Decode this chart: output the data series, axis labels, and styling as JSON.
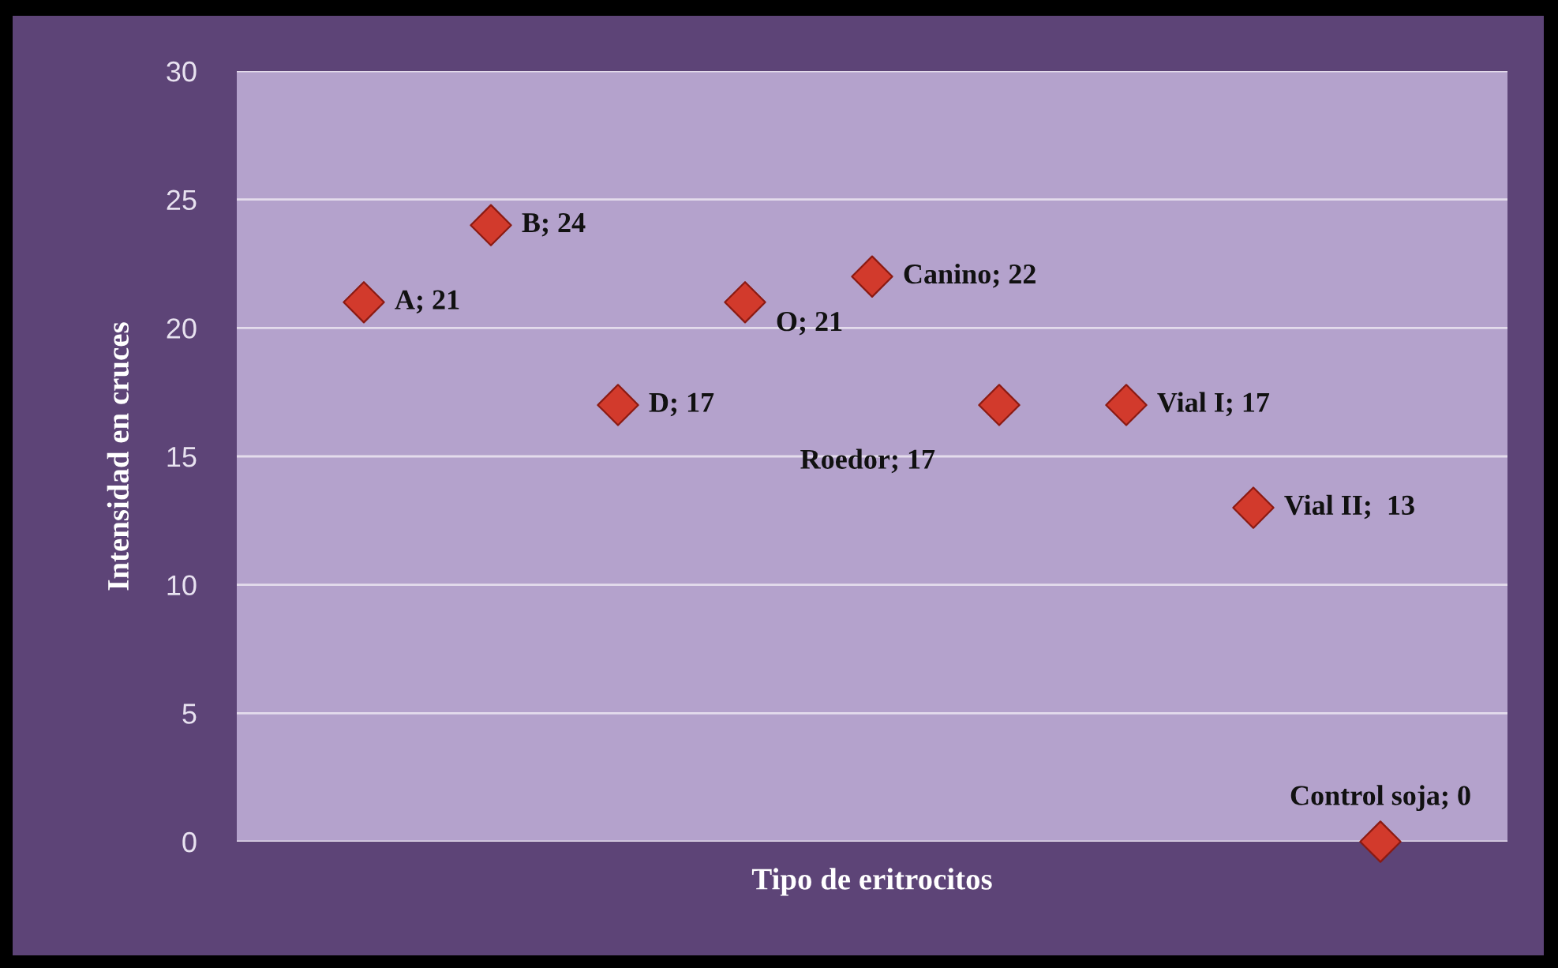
{
  "chart_data": {
    "type": "scatter",
    "categories": [
      null,
      null,
      null,
      null,
      null,
      null,
      null,
      null,
      null
    ],
    "xlabel": "Tipo de eritrocitos",
    "ylabel": "Intensidad en cruces",
    "series": [
      {
        "color": "#d23a2c",
        "values": [
          21,
          24,
          17,
          21,
          22,
          17,
          17,
          13,
          0
        ],
        "value_labels": [
          "A; 21",
          "B; 24",
          "D; 17",
          "O; 21",
          "Canino; 22",
          "Roedor; 17",
          "Vial I; 17",
          "Vial II;  13",
          "Control soja; 0"
        ]
      }
    ],
    "ylim": [
      0,
      30
    ],
    "yticks": [
      0,
      5,
      10,
      15,
      20,
      25,
      30
    ],
    "grid": "y",
    "marker": "diamond"
  }
}
